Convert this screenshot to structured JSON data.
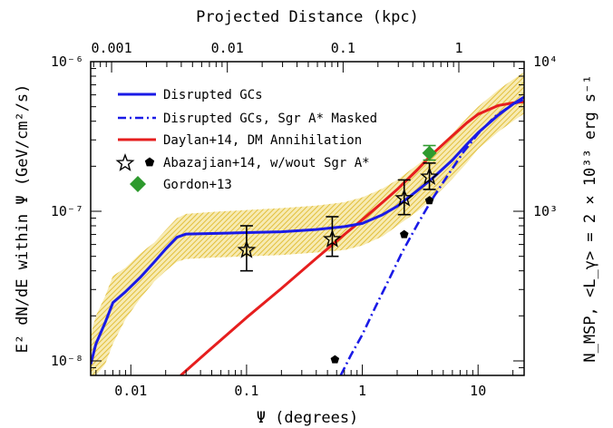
{
  "chart_data": {
    "type": "line",
    "title": "",
    "xlabel": "Ψ (degrees)",
    "x2label": "Projected Distance (kpc)",
    "ylabel": "E² dN/dE within Ψ (GeV/cm²/s)",
    "y2label": "N_MSP, <L_γ> = 2 × 10³³ erg s⁻¹",
    "xscale": "log",
    "yscale": "log",
    "xlim": [
      0.0045,
      25
    ],
    "ylim": [
      8e-09,
      1e-06
    ],
    "x_ticks": [
      {
        "value": 0.01,
        "label": "0.01"
      },
      {
        "value": 0.1,
        "label": "0.1"
      },
      {
        "value": 1,
        "label": "1"
      },
      {
        "value": 10,
        "label": "10"
      }
    ],
    "x2_ticks": [
      {
        "value": 0.001,
        "label": "0.001"
      },
      {
        "value": 0.01,
        "label": "0.01"
      },
      {
        "value": 0.1,
        "label": "0.1"
      },
      {
        "value": 1,
        "label": "1"
      }
    ],
    "y_ticks": [
      {
        "value": 1e-08,
        "label": "10⁻⁸"
      },
      {
        "value": 1e-07,
        "label": "10⁻⁷"
      },
      {
        "value": 1e-06,
        "label": "10⁻⁶"
      }
    ],
    "y2_ticks": [
      {
        "value": 1000,
        "label": "10³"
      },
      {
        "value": 10000,
        "label": "10⁴"
      }
    ],
    "legend_position": "top-left",
    "colors": {
      "disrupted": "#1a1ae6",
      "band": "#e8c94a",
      "daylan": "#e61e1e",
      "gordon": "#2e9a2e",
      "black": "#000000"
    },
    "band": {
      "x": [
        0.0045,
        0.005,
        0.006,
        0.007,
        0.009,
        0.012,
        0.016,
        0.02,
        0.025,
        0.03,
        0.05,
        0.1,
        0.2,
        0.4,
        0.7,
        1.0,
        1.5,
        2.0,
        3.0,
        4.0,
        6.0,
        8.0,
        10,
        15,
        20,
        25
      ],
      "upper": [
        1.5e-08,
        2e-08,
        2.7e-08,
        3.7e-08,
        4.2e-08,
        5.2e-08,
        6.2e-08,
        7.5e-08,
        9e-08,
        9.6e-08,
        9.9e-08,
        1.02e-07,
        1.05e-07,
        1.09e-07,
        1.15e-07,
        1.24e-07,
        1.42e-07,
        1.62e-07,
        2.05e-07,
        2.45e-07,
        3.3e-07,
        4.2e-07,
        5e-07,
        6.5e-07,
        7.6e-07,
        8.5e-07
      ],
      "lower": [
        8e-09,
        8e-09,
        9.5e-09,
        1.3e-08,
        1.9e-08,
        2.6e-08,
        3.4e-08,
        4e-08,
        4.6e-08,
        4.8e-08,
        4.9e-08,
        5e-08,
        5.1e-08,
        5.3e-08,
        5.5e-08,
        5.9e-08,
        6.8e-08,
        8e-08,
        1e-07,
        1.2e-07,
        1.65e-07,
        2.1e-07,
        2.6e-07,
        3.4e-07,
        4e-07,
        4.5e-07
      ]
    },
    "series": [
      {
        "name": "Disrupted GCs",
        "style": "solid",
        "color": "#1a1ae6",
        "x": [
          0.0045,
          0.005,
          0.006,
          0.007,
          0.009,
          0.012,
          0.016,
          0.02,
          0.025,
          0.03,
          0.05,
          0.1,
          0.2,
          0.4,
          0.7,
          1.0,
          1.5,
          2.0,
          3.0,
          4.0,
          6.0,
          8.0,
          10,
          15,
          20,
          25
        ],
        "y": [
          9.5e-09,
          1.3e-08,
          1.8e-08,
          2.45e-08,
          2.9e-08,
          3.6e-08,
          4.6e-08,
          5.6e-08,
          6.7e-08,
          7.05e-08,
          7.1e-08,
          7.2e-08,
          7.3e-08,
          7.55e-08,
          7.9e-08,
          8.3e-08,
          9.5e-08,
          1.08e-07,
          1.38e-07,
          1.65e-07,
          2.2e-07,
          2.8e-07,
          3.35e-07,
          4.4e-07,
          5.2e-07,
          5.8e-07
        ]
      },
      {
        "name": "Disrupted GCs, Sgr A* Masked",
        "style": "dashdot",
        "color": "#1a1ae6",
        "x": [
          0.65,
          0.8,
          1.0,
          1.3,
          1.7,
          2.2,
          3.0,
          4.0,
          5.5,
          7.5,
          10,
          14,
          20,
          25
        ],
        "y": [
          8e-09,
          1.1e-08,
          1.5e-08,
          2.3e-08,
          3.5e-08,
          5.3e-08,
          8.2e-08,
          1.2e-07,
          1.75e-07,
          2.5e-07,
          3.3e-07,
          4.3e-07,
          5.2e-07,
          5.6e-07
        ]
      },
      {
        "name": "Daylan+14, DM Annihilation",
        "style": "solid",
        "color": "#e61e1e",
        "x": [
          0.027,
          0.05,
          0.1,
          0.2,
          0.4,
          0.7,
          1.0,
          1.5,
          2.0,
          3.0,
          4.0,
          6.0,
          8.0,
          10,
          15,
          20,
          25
        ],
        "y": [
          8e-09,
          1.22e-08,
          1.95e-08,
          3.05e-08,
          4.85e-08,
          7e-08,
          8.8e-08,
          1.15e-07,
          1.4e-07,
          1.9e-07,
          2.4e-07,
          3.2e-07,
          3.9e-07,
          4.45e-07,
          5.1e-07,
          5.3e-07,
          5.4e-07
        ]
      }
    ],
    "points": [
      {
        "name": "Abazajian+14, w/wout Sgr A*",
        "marker": "open-star",
        "x": [
          0.1,
          0.55,
          2.3,
          3.8
        ],
        "y": [
          5.5e-08,
          6.5e-08,
          1.22e-07,
          1.7e-07
        ],
        "y_low": [
          4e-08,
          5e-08,
          9.5e-08,
          1.4e-07
        ],
        "y_high": [
          8e-08,
          9.2e-08,
          1.62e-07,
          2.1e-07
        ]
      },
      {
        "name": "",
        "marker": "filled-pentagon",
        "x": [
          0.58,
          2.3,
          3.8
        ],
        "y": [
          1.02e-08,
          7e-08,
          1.18e-07
        ]
      },
      {
        "name": "Gordon+13",
        "marker": "filled-diamond",
        "x": [
          3.8
        ],
        "y": [
          2.45e-07
        ],
        "y_low": [
          2.2e-07
        ],
        "y_high": [
          2.75e-07
        ]
      }
    ]
  }
}
